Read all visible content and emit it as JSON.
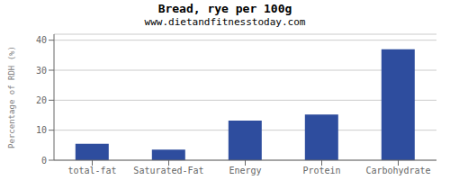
{
  "chart_data": {
    "type": "bar",
    "title": "Bread, rye per 100g",
    "subtitle": "www.dietandfitnesstoday.com",
    "categories": [
      "total-fat",
      "Saturated-Fat",
      "Energy",
      "Protein",
      "Carbohydrate"
    ],
    "values": [
      5.5,
      3.5,
      13.2,
      15.2,
      37.0
    ],
    "color": "#2e4d9e",
    "ylabel": "Percentage of RDH (%)",
    "ylim": [
      0,
      42
    ],
    "yticks": [
      0,
      10,
      20,
      30,
      40
    ],
    "grid": true
  }
}
